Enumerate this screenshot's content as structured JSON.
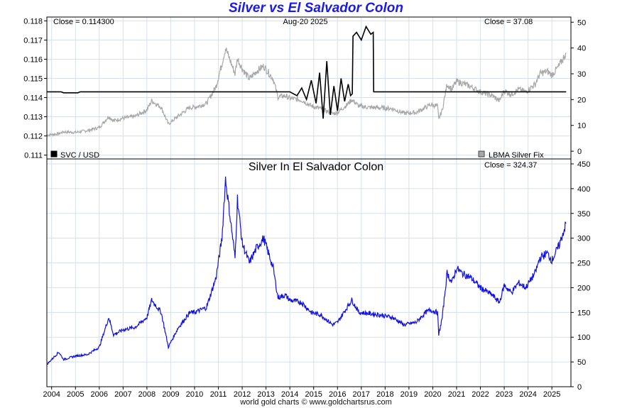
{
  "title": "Silver vs El Salvador Colon",
  "footer": "world gold charts © www.goldchartsrus.com",
  "colors": {
    "title": "#1a1aee",
    "svc_line": "#000000",
    "silver_usd_line": "#a8a8a8",
    "silver_svc_line": "#1010e0",
    "grid": "#d6e0ec"
  },
  "chart_data": [
    {
      "type": "line",
      "panel": "top",
      "date_label": "Aug-20  2025",
      "left_close_label": "Close = 0.114300",
      "right_close_label": "Close = 37.08",
      "x_range": [
        2003.8,
        2025.8
      ],
      "y_left": {
        "range": [
          0.1108,
          0.1182
        ],
        "ticks": [
          0.111,
          0.112,
          0.113,
          0.114,
          0.115,
          0.116,
          0.117,
          0.118
        ]
      },
      "y_right": {
        "range": [
          -3,
          52
        ],
        "ticks": [
          0,
          10,
          20,
          30,
          40,
          50
        ]
      },
      "grid": true,
      "legend": [
        {
          "name": "SVC / USD",
          "position": "bottom-left",
          "color": "#000000"
        },
        {
          "name": "LBMA Silver Fix",
          "position": "bottom-right",
          "color": "#a8a8a8"
        }
      ],
      "series": [
        {
          "name": "SVC / USD",
          "axis": "left",
          "x": [
            2003.8,
            2004.4,
            2004.5,
            2005.1,
            2005.2,
            2014.0,
            2014.3,
            2014.5,
            2014.7,
            2014.9,
            2015.1,
            2015.25,
            2015.4,
            2015.55,
            2015.7,
            2015.85,
            2016.0,
            2016.15,
            2016.3,
            2016.45,
            2016.55,
            2016.62,
            2016.65,
            2016.8,
            2017.0,
            2017.2,
            2017.4,
            2017.5,
            2017.52,
            2017.55,
            2025.6
          ],
          "y": [
            0.1143,
            0.1143,
            0.11425,
            0.11425,
            0.1143,
            0.1143,
            0.1141,
            0.1145,
            0.1139,
            0.1149,
            0.1137,
            0.1153,
            0.1129,
            0.1159,
            0.1131,
            0.1146,
            0.1133,
            0.115,
            0.1138,
            0.1147,
            0.1141,
            0.1142,
            0.1172,
            0.1174,
            0.117,
            0.1177,
            0.1173,
            0.1174,
            0.1143,
            0.1143,
            0.1143
          ]
        },
        {
          "name": "LBMA Silver Fix",
          "axis": "right",
          "x": [
            2003.8,
            2004.3,
            2004.5,
            2005.0,
            2005.5,
            2006.0,
            2006.4,
            2006.6,
            2007.0,
            2007.5,
            2008.0,
            2008.2,
            2008.6,
            2008.9,
            2009.3,
            2009.8,
            2010.0,
            2010.5,
            2010.9,
            2011.15,
            2011.3,
            2011.7,
            2011.8,
            2012.0,
            2012.3,
            2012.6,
            2012.9,
            2013.3,
            2013.5,
            2013.8,
            2014.0,
            2014.5,
            2014.9,
            2015.3,
            2015.8,
            2016.0,
            2016.4,
            2016.6,
            2016.9,
            2017.3,
            2017.8,
            2018.3,
            2018.8,
            2019.3,
            2019.7,
            2019.9,
            2020.2,
            2020.25,
            2020.4,
            2020.6,
            2020.8,
            2021.0,
            2021.2,
            2021.6,
            2022.0,
            2022.5,
            2022.8,
            2023.0,
            2023.3,
            2023.6,
            2023.9,
            2024.3,
            2024.5,
            2024.8,
            2025.0,
            2025.3,
            2025.6
          ],
          "y": [
            6.2,
            6.8,
            7.5,
            7.3,
            8.0,
            9.2,
            13.5,
            11.8,
            12.8,
            13.5,
            16.0,
            19.5,
            17.0,
            10.5,
            13.5,
            17.0,
            17.0,
            18.5,
            25.0,
            34.0,
            40.0,
            30.0,
            36.0,
            32.0,
            28.0,
            31.0,
            33.0,
            28.0,
            21.0,
            21.5,
            20.5,
            19.8,
            17.5,
            16.5,
            14.5,
            15.0,
            18.0,
            20.0,
            17.5,
            17.0,
            16.8,
            16.5,
            14.7,
            15.0,
            17.0,
            18.0,
            17.5,
            12.5,
            16.0,
            26.0,
            24.0,
            27.0,
            26.5,
            25.0,
            23.0,
            21.5,
            19.5,
            23.5,
            22.0,
            24.0,
            23.0,
            26.0,
            30.0,
            31.0,
            29.5,
            33.0,
            38.0
          ]
        }
      ]
    },
    {
      "type": "line",
      "panel": "bottom",
      "title": "Silver In El Salvador Colon",
      "close_label": "Close = 324.37",
      "x_range": [
        2003.8,
        2025.8
      ],
      "x_ticks": [
        "2004",
        "2005",
        "2006",
        "2007",
        "2008",
        "2009",
        "2010",
        "2011",
        "2012",
        "2013",
        "2014",
        "2015",
        "2016",
        "2017",
        "2018",
        "2019",
        "2020",
        "2021",
        "2022",
        "2023",
        "2024",
        "2025"
      ],
      "y_right": {
        "range": [
          0,
          460
        ],
        "ticks": [
          0,
          50,
          100,
          150,
          200,
          250,
          300,
          350,
          400,
          450
        ]
      },
      "grid": true,
      "series": [
        {
          "name": "Silver In El Salvador Colon",
          "x": [
            2003.8,
            2004.3,
            2004.5,
            2005.0,
            2005.5,
            2006.0,
            2006.4,
            2006.6,
            2007.0,
            2007.5,
            2008.0,
            2008.2,
            2008.6,
            2008.9,
            2009.3,
            2009.8,
            2010.0,
            2010.5,
            2010.9,
            2011.15,
            2011.3,
            2011.7,
            2011.8,
            2012.0,
            2012.3,
            2012.6,
            2012.9,
            2013.3,
            2013.5,
            2013.8,
            2014.0,
            2014.5,
            2014.9,
            2015.3,
            2015.8,
            2016.0,
            2016.4,
            2016.6,
            2016.9,
            2017.3,
            2017.8,
            2018.3,
            2018.8,
            2019.3,
            2019.7,
            2019.9,
            2020.2,
            2020.25,
            2020.4,
            2020.6,
            2020.8,
            2021.0,
            2021.2,
            2021.6,
            2022.0,
            2022.5,
            2022.8,
            2023.0,
            2023.3,
            2023.6,
            2023.9,
            2024.3,
            2024.5,
            2024.8,
            2025.0,
            2025.3,
            2025.6
          ],
          "y": [
            45,
            70,
            55,
            62,
            65,
            80,
            140,
            105,
            115,
            120,
            140,
            175,
            150,
            80,
            118,
            150,
            150,
            160,
            220,
            300,
            420,
            260,
            380,
            290,
            250,
            280,
            300,
            240,
            180,
            185,
            175,
            170,
            150,
            145,
            125,
            130,
            160,
            175,
            150,
            148,
            145,
            140,
            125,
            130,
            150,
            155,
            150,
            105,
            140,
            230,
            210,
            240,
            230,
            220,
            200,
            185,
            170,
            205,
            190,
            210,
            200,
            230,
            260,
            270,
            255,
            285,
            330
          ]
        }
      ]
    }
  ]
}
